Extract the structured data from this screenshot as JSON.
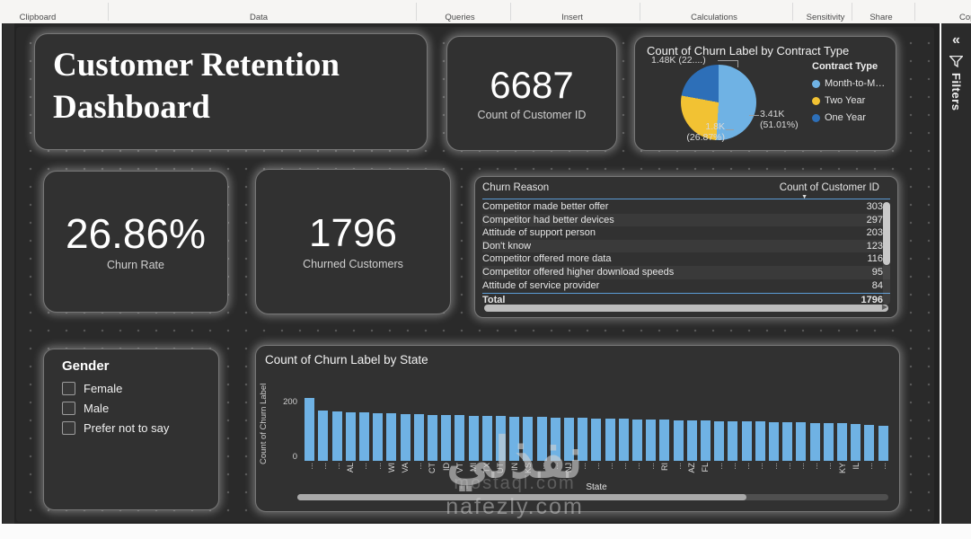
{
  "ribbon": {
    "groups": [
      "Clipboard",
      "Data",
      "Queries",
      "Insert",
      "Calculations",
      "Sensitivity",
      "Share",
      "Cop"
    ]
  },
  "filters_pane": {
    "label": "Filters",
    "collapse_glyph": "«"
  },
  "title_card": {
    "line1": "Customer Retention",
    "line2": "Dashboard"
  },
  "kpi_customer_count": {
    "value": "6687",
    "label": "Count of Customer ID"
  },
  "kpi_churn_rate": {
    "value": "26.86%",
    "label": "Churn Rate"
  },
  "kpi_churned_customers": {
    "value": "1796",
    "label": "Churned Customers"
  },
  "reason_table": {
    "columns": [
      "Churn Reason",
      "Count of Customer ID"
    ],
    "rows": [
      {
        "reason": "Competitor made better offer",
        "count": "303"
      },
      {
        "reason": "Competitor had better devices",
        "count": "297"
      },
      {
        "reason": "Attitude of support person",
        "count": "203"
      },
      {
        "reason": "Don't know",
        "count": "123"
      },
      {
        "reason": "Competitor offered more data",
        "count": "116"
      },
      {
        "reason": "Competitor offered higher download speeds",
        "count": "95"
      },
      {
        "reason": "Attitude of service provider",
        "count": "84"
      }
    ],
    "total_label": "Total",
    "total_value": "1796"
  },
  "gender_slicer": {
    "title": "Gender",
    "options": [
      "Female",
      "Male",
      "Prefer not to say"
    ]
  },
  "watermark": {
    "line1": "نفذلي",
    "line2": "mostaql.com",
    "line3": "nafezly.com"
  },
  "colors": {
    "accent_blue": "#6FB2E4",
    "accent_yellow": "#F2C233",
    "accent_dark_blue": "#2D6FB8",
    "table_line_blue": "#5B9BD5",
    "card_bg": "#313131",
    "canvas_bg": "#2A2A2A"
  },
  "chart_data": [
    {
      "type": "pie",
      "title": "Count of Churn Label by Contract Type",
      "legend_title": "Contract Type",
      "legend_position": "right",
      "slices": [
        {
          "name": "Month-to-M…",
          "value": 3410,
          "pct": 51.01,
          "color": "#6FB2E4",
          "callout": "3.41K (51.01%)"
        },
        {
          "name": "Two Year",
          "value": 1800,
          "pct": 26.87,
          "color": "#F2C233",
          "callout": "1.8K (26.87%)"
        },
        {
          "name": "One Year",
          "value": 1480,
          "pct": 22.12,
          "color": "#2D6FB8",
          "callout": "1.48K (22....)"
        }
      ],
      "callouts": {
        "one_year": "1.48K (22....)",
        "month_line1": "3.41K",
        "month_line2": "(51.01%)",
        "two_year_line1": "1.8K",
        "two_year_line2": "(26.87%)"
      }
    },
    {
      "type": "bar",
      "title": "Count of Churn Label by State",
      "xlabel": "State",
      "ylabel": "Count of Churn Label",
      "ylim": [
        0,
        220
      ],
      "yticks": [
        0,
        200
      ],
      "bar_color": "#6FB2E4",
      "grid": false,
      "categories": [
        "...",
        "...",
        "...",
        "AL",
        "...",
        "...",
        "WI",
        "VA",
        "...",
        "CT",
        "ID",
        "VT",
        "MI",
        "TX",
        "UT",
        "IN",
        "KS",
        "...",
        "...",
        "NJ",
        "...",
        "...",
        "...",
        "...",
        "...",
        "...",
        "RI",
        "...",
        "AZ",
        "FL",
        "...",
        "...",
        "...",
        "...",
        "...",
        "...",
        "...",
        "...",
        "...",
        "KY",
        "IL",
        "...",
        "..."
      ],
      "values": [
        215,
        172,
        170,
        167,
        165,
        164,
        163,
        161,
        160,
        158,
        157,
        156,
        155,
        154,
        153,
        152,
        151,
        150,
        149,
        148,
        147,
        146,
        145,
        144,
        143,
        142,
        141,
        140,
        139,
        138,
        137,
        136,
        135,
        134,
        133,
        132,
        131,
        130,
        129,
        128,
        127,
        124,
        121
      ]
    }
  ]
}
